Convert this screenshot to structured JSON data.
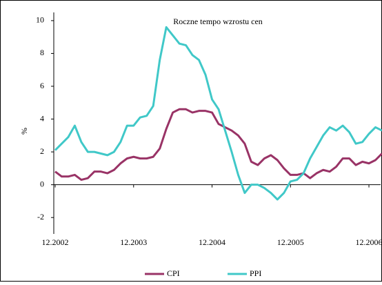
{
  "chart_data": {
    "type": "line",
    "title": "Roczne tempo wzrostu cen",
    "ylabel": "%",
    "categories": [
      "12.2002",
      null,
      null,
      null,
      null,
      null,
      null,
      null,
      null,
      null,
      null,
      null,
      "12.2003",
      null,
      null,
      null,
      null,
      null,
      null,
      null,
      null,
      null,
      null,
      null,
      "12.2004",
      null,
      null,
      null,
      null,
      null,
      null,
      null,
      null,
      null,
      null,
      null,
      "12.2005",
      null,
      null,
      null,
      null,
      null,
      null,
      null,
      null,
      null,
      null,
      null,
      "12.2006",
      null,
      null
    ],
    "series": [
      {
        "name": "CPI",
        "color": "#993366",
        "values": [
          0.8,
          0.5,
          0.5,
          0.6,
          0.3,
          0.4,
          0.8,
          0.8,
          0.7,
          0.9,
          1.3,
          1.6,
          1.7,
          1.6,
          1.6,
          1.7,
          2.2,
          3.4,
          4.4,
          4.6,
          4.6,
          4.4,
          4.5,
          4.5,
          4.4,
          3.7,
          3.5,
          3.3,
          3.0,
          2.5,
          1.4,
          1.2,
          1.6,
          1.8,
          1.5,
          1.0,
          0.6,
          0.6,
          0.7,
          0.4,
          0.7,
          0.9,
          0.8,
          1.1,
          1.6,
          1.6,
          1.2,
          1.4,
          1.3,
          1.5,
          1.9
        ]
      },
      {
        "name": "PPI",
        "color": "#40C8C8",
        "values": [
          2.1,
          2.5,
          2.9,
          3.6,
          2.6,
          2.0,
          2.0,
          1.9,
          1.8,
          2.0,
          2.6,
          3.6,
          3.6,
          4.1,
          4.2,
          4.8,
          7.6,
          9.6,
          9.1,
          8.6,
          8.5,
          7.9,
          7.6,
          6.7,
          5.2,
          4.6,
          3.3,
          2.0,
          0.6,
          -0.5,
          0.0,
          0.0,
          -0.2,
          -0.5,
          -0.9,
          -0.5,
          0.2,
          0.3,
          0.7,
          1.6,
          2.3,
          3.0,
          3.5,
          3.3,
          3.6,
          3.2,
          2.5,
          2.6,
          3.1,
          3.5,
          3.3
        ]
      }
    ],
    "ylim": [
      -3,
      10.5
    ],
    "yticks": [
      -2,
      0,
      2,
      4,
      6,
      8,
      10
    ],
    "legend": "bottom"
  }
}
